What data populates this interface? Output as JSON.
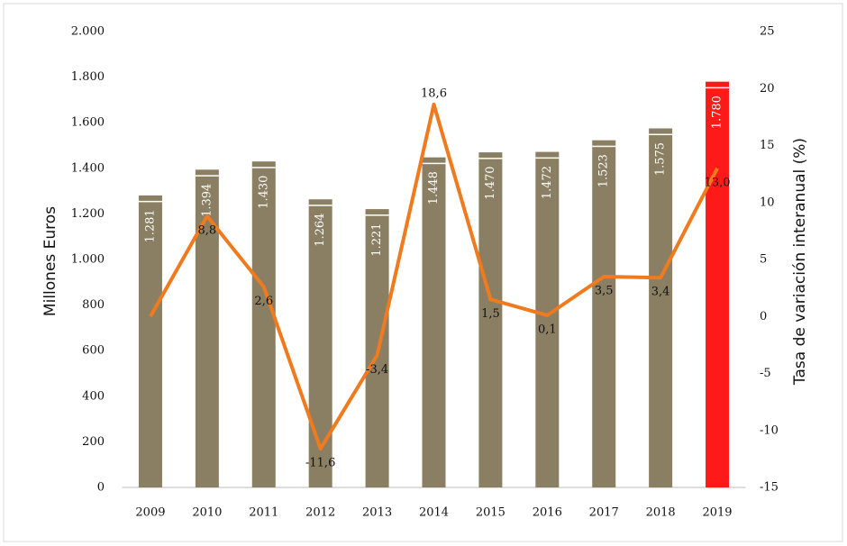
{
  "chart_data": {
    "type": "combo",
    "y_label": "Millones Euros",
    "y2_label": "Tasa de variación interanual (%)",
    "categories": [
      "2009",
      "2010",
      "2011",
      "2012",
      "2013",
      "2014",
      "2015",
      "2016",
      "2017",
      "2018",
      "2019"
    ],
    "ylim": [
      0,
      2000
    ],
    "yticks": [
      0,
      200,
      400,
      600,
      800,
      {
        "value": 1000,
        "label": "1.000"
      },
      {
        "value": 1200,
        "label": "1.200"
      },
      {
        "value": 1400,
        "label": "1.400"
      },
      {
        "value": 1600,
        "label": "1.600"
      },
      {
        "value": 1800,
        "label": "1.800"
      },
      {
        "value": 2000,
        "label": "2.000"
      }
    ],
    "y2lim": [
      -15,
      25
    ],
    "y2ticks": [
      -15,
      -10,
      -5,
      0,
      5,
      10,
      15,
      20,
      25
    ],
    "series": [
      {
        "type": "bar",
        "color": "#8b7f63",
        "colors": [
          "#8b7f63",
          "#8b7f63",
          "#8b7f63",
          "#8b7f63",
          "#8b7f63",
          "#8b7f63",
          "#8b7f63",
          "#8b7f63",
          "#8b7f63",
          "#8b7f63",
          "#ff1a1a"
        ],
        "values": [
          1281,
          1394,
          1430,
          1264,
          1221,
          1448,
          1470,
          1472,
          1523,
          1575,
          1780
        ],
        "value_labels": [
          "1.281",
          "1.394",
          "1.430",
          "1.264",
          "1.221",
          "1.448",
          "1.470",
          "1.472",
          "1.523",
          "1.575",
          "1.780"
        ]
      },
      {
        "type": "line",
        "axis": "y2",
        "color": "#f07a1e",
        "values": [
          0,
          8.8,
          2.6,
          -11.6,
          -3.4,
          18.6,
          1.5,
          0.1,
          3.5,
          3.4,
          13.0
        ],
        "value_labels": [
          null,
          "8,8",
          "2,6",
          "-11,6",
          "-3,4",
          "18,6",
          "1,5",
          "0,1",
          "3,5",
          "3,4",
          "13,0"
        ]
      }
    ]
  }
}
